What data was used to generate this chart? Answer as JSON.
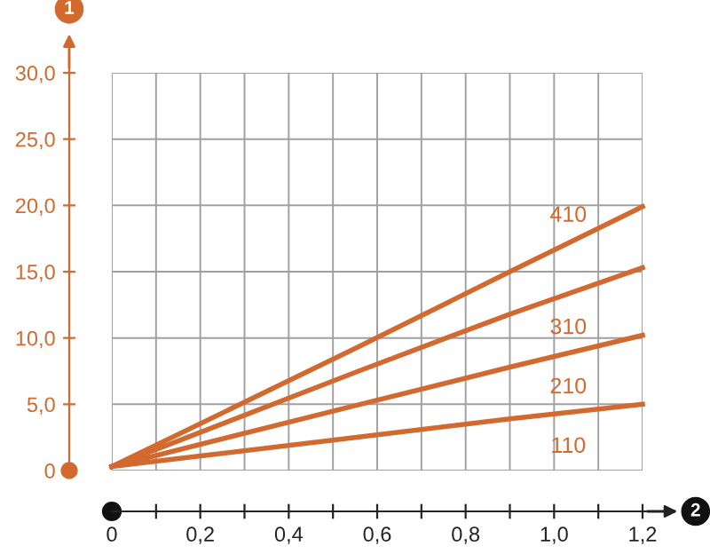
{
  "chart_data": {
    "type": "line",
    "xlabel": "2",
    "ylabel": "1",
    "x": [
      0,
      0.55,
      0.9,
      1.2
    ],
    "series": [
      {
        "name": "410",
        "color": "#d2692e",
        "values": [
          0.3,
          9.2,
          15.0,
          19.9
        ]
      },
      {
        "name": "310",
        "color": "#d2692e",
        "values": [
          0.3,
          7.4,
          11.8,
          15.3
        ]
      },
      {
        "name": "210",
        "color": "#d2692e",
        "values": [
          0.3,
          4.9,
          7.8,
          10.2
        ]
      },
      {
        "name": "110",
        "color": "#d2692e",
        "values": [
          0.3,
          2.5,
          3.9,
          5.0
        ]
      }
    ],
    "xlim": [
      0,
      1.2
    ],
    "ylim": [
      0,
      30
    ],
    "xticks": [
      {
        "value": 0,
        "label": "0"
      },
      {
        "value": 0.1,
        "label": null
      },
      {
        "value": 0.2,
        "label": "0,2"
      },
      {
        "value": 0.3,
        "label": null
      },
      {
        "value": 0.4,
        "label": "0,4"
      },
      {
        "value": 0.5,
        "label": null
      },
      {
        "value": 0.6,
        "label": "0,6"
      },
      {
        "value": 0.7,
        "label": null
      },
      {
        "value": 0.8,
        "label": "0,8"
      },
      {
        "value": 0.9,
        "label": null
      },
      {
        "value": 1.0,
        "label": "1,0"
      },
      {
        "value": 1.1,
        "label": null
      },
      {
        "value": 1.2,
        "label": "1,2"
      }
    ],
    "yticks": [
      {
        "value": 0,
        "label": "0"
      },
      {
        "value": 5,
        "label": "5,0"
      },
      {
        "value": 10,
        "label": "10,0"
      },
      {
        "value": 15,
        "label": "15,0"
      },
      {
        "value": 20,
        "label": "20,0"
      },
      {
        "value": 25,
        "label": "25,0"
      },
      {
        "value": 30,
        "label": "30,0"
      }
    ],
    "grid": true,
    "legend": false,
    "marker": "none",
    "line_style": "solid"
  }
}
